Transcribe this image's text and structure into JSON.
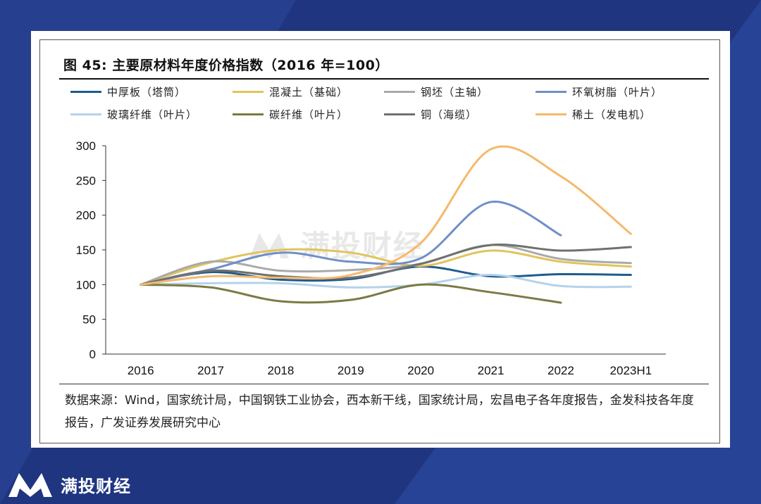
{
  "figure": {
    "title": "图 45: 主要原材料年度价格指数（2016 年=100）",
    "source": "数据来源：Wind，国家统计局，中国钢铁工业协会，西本新干线，国家统计局，宏昌电子各年度报告，金发科技各年度报告，广发证券发展研究中心"
  },
  "brand": {
    "name": "满投财经",
    "watermark": "满投财经"
  },
  "chart_data": {
    "type": "line",
    "title": "主要原材料年度价格指数（2016 年=100）",
    "xlabel": "",
    "ylabel": "",
    "categories": [
      "2016",
      "2017",
      "2018",
      "2019",
      "2020",
      "2021",
      "2022",
      "2023H1"
    ],
    "ylim": [
      0,
      300
    ],
    "yticks": [
      0,
      50,
      100,
      150,
      200,
      250,
      300
    ],
    "smooth": true,
    "series": [
      {
        "name": "中厚板（塔筒）",
        "color": "#1f5b8e",
        "values": [
          100,
          118,
          107,
          108,
          126,
          112,
          115,
          114
        ]
      },
      {
        "name": "混凝土（基础）",
        "color": "#e2c35c",
        "values": [
          100,
          132,
          150,
          146,
          127,
          149,
          133,
          126
        ]
      },
      {
        "name": "钢坯（主轴）",
        "color": "#aaaaaa",
        "values": [
          100,
          133,
          120,
          121,
          130,
          157,
          137,
          131
        ]
      },
      {
        "name": "环氧树脂（叶片）",
        "color": "#6f8fc7",
        "values": [
          100,
          122,
          146,
          133,
          138,
          219,
          171,
          null
        ]
      },
      {
        "name": "玻璃纤维（叶片）",
        "color": "#b5d2ea",
        "values": [
          100,
          102,
          102,
          96,
          100,
          114,
          98,
          97
        ]
      },
      {
        "name": "碳纤维（叶片）",
        "color": "#7a7a45",
        "values": [
          100,
          96,
          76,
          78,
          100,
          89,
          74,
          null
        ]
      },
      {
        "name": "铜（海缆）",
        "color": "#707070",
        "values": [
          100,
          120,
          112,
          110,
          130,
          157,
          149,
          154
        ]
      },
      {
        "name": "稀土（发电机）",
        "color": "#f5b96b",
        "values": [
          100,
          112,
          110,
          114,
          160,
          295,
          256,
          173
        ]
      }
    ]
  }
}
